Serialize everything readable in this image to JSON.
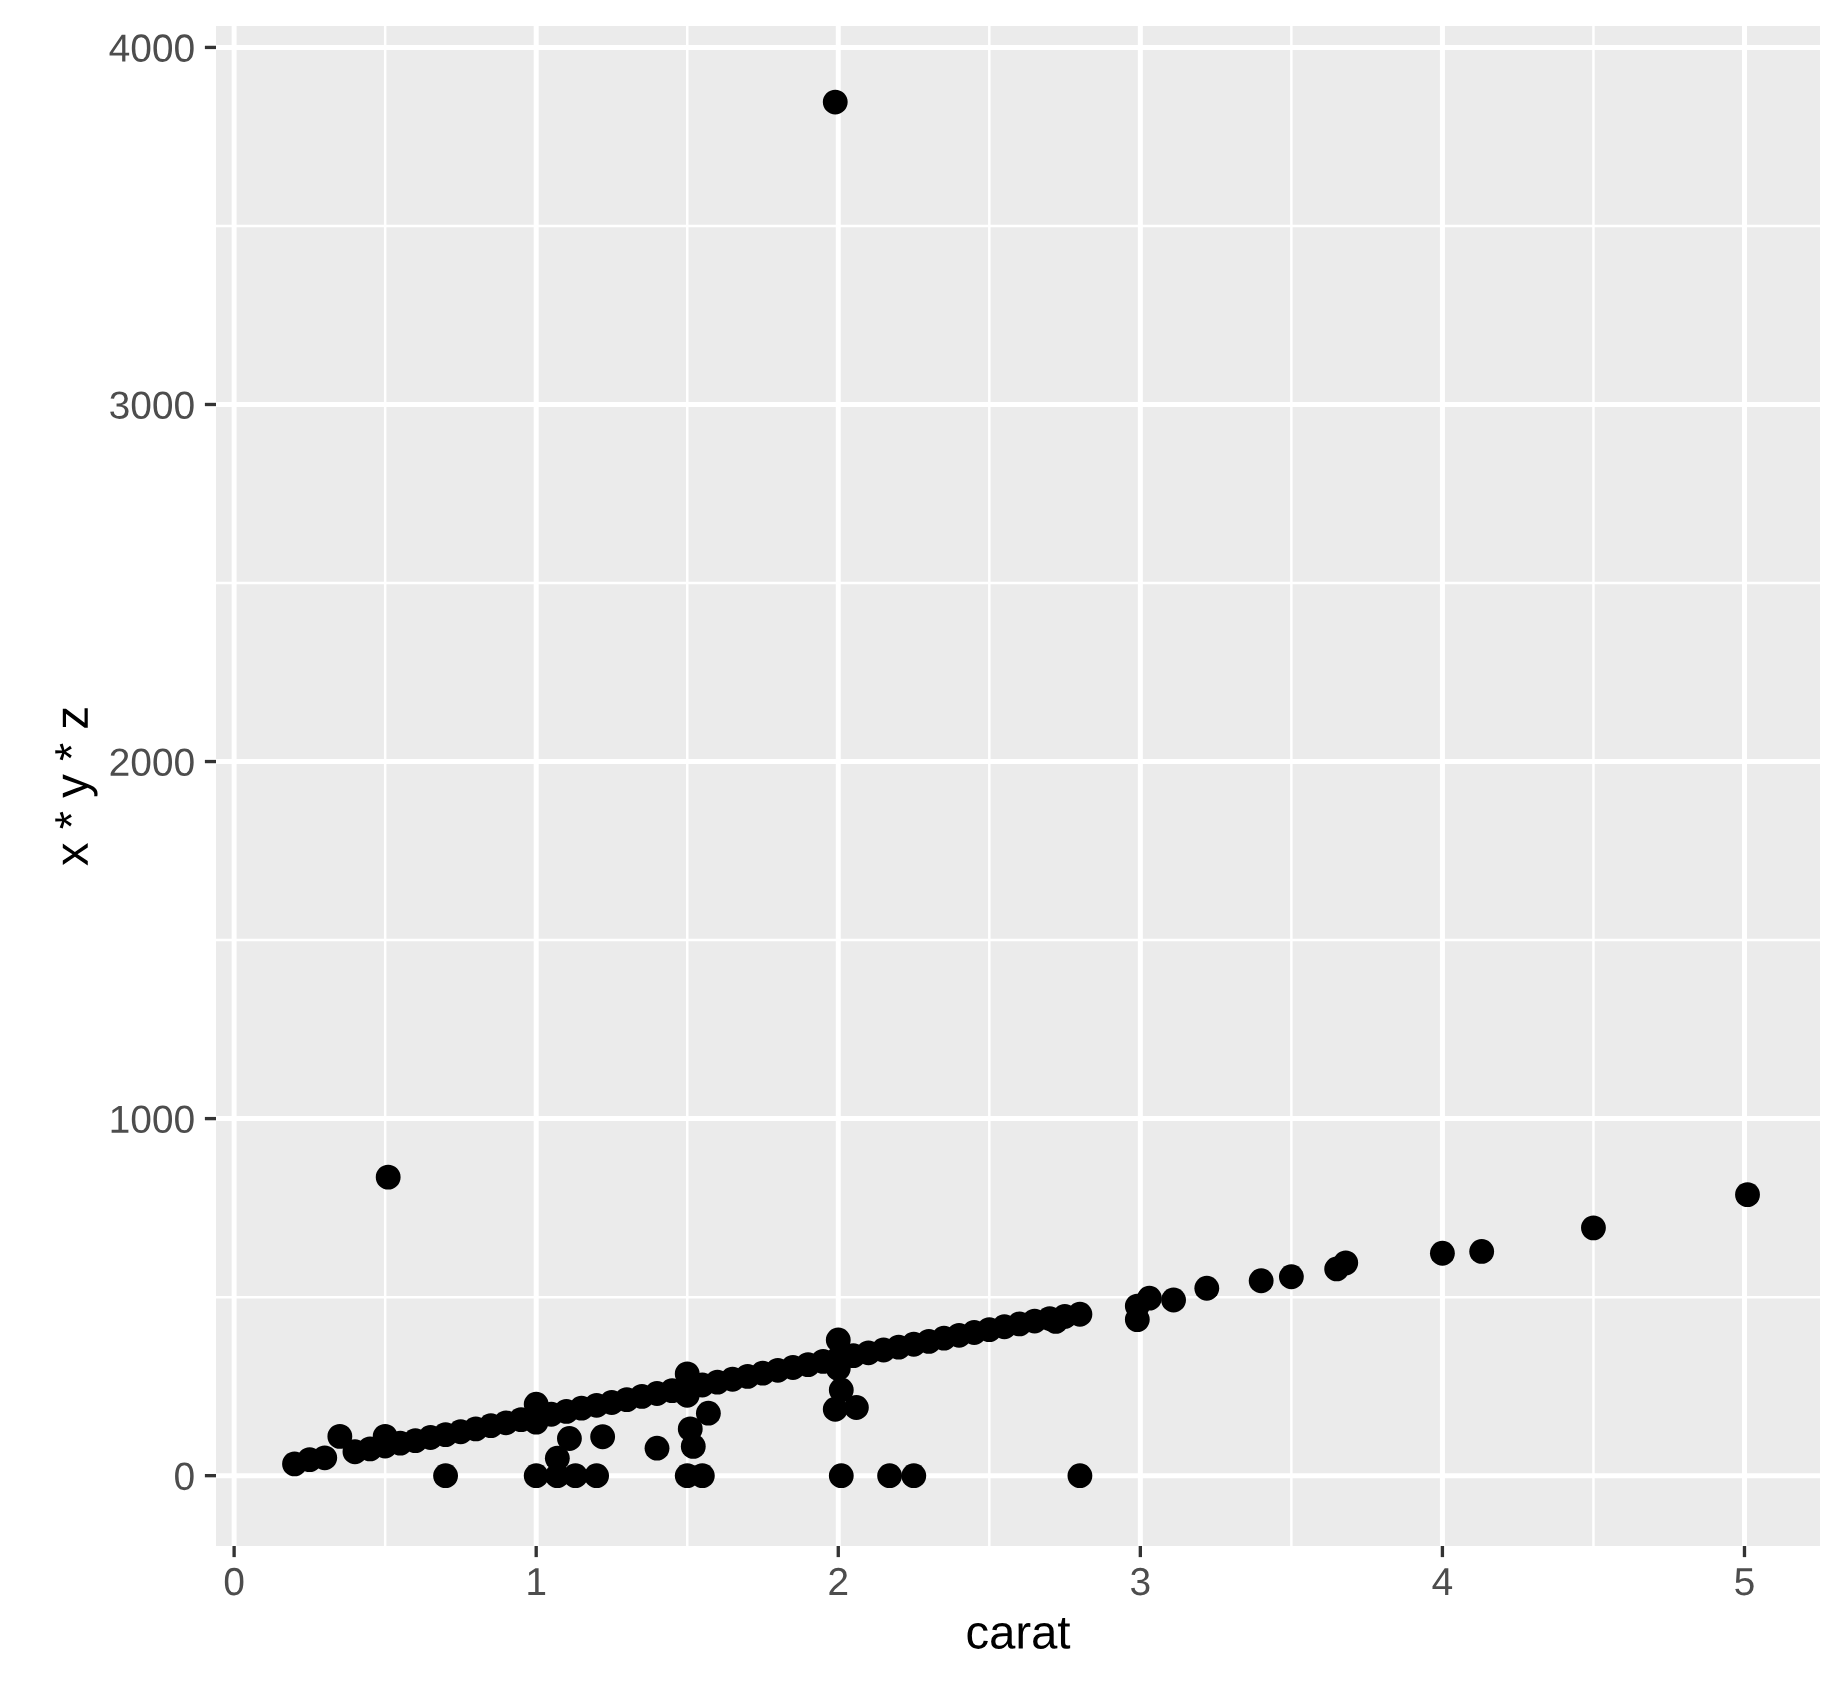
{
  "chart_data": {
    "type": "scatter",
    "xlabel": "carat",
    "ylabel": "x * y * z",
    "x": [
      0.2,
      0.25,
      0.3,
      0.35,
      0.4,
      0.5,
      0.5,
      0.6,
      0.7,
      0.8,
      0.9,
      1.0,
      1.0,
      1.1,
      1.2,
      1.3,
      1.4,
      1.5,
      1.5,
      1.6,
      1.7,
      1.8,
      1.9,
      2.0,
      2.0,
      2.0,
      2.1,
      2.2,
      2.3,
      2.4,
      2.5,
      2.6,
      2.7,
      2.8,
      0.51,
      1.99,
      0.7,
      1.0,
      1.07,
      1.13,
      1.2,
      1.5,
      1.55,
      2.01,
      2.17,
      2.25,
      2.8,
      1.07,
      1.11,
      1.22,
      1.4,
      1.51,
      1.52,
      1.57,
      1.99,
      2.06,
      2.01,
      2.72,
      2.99,
      2.99,
      3.03,
      3.11,
      3.22,
      3.4,
      3.5,
      3.65,
      3.68,
      4.0,
      4.13,
      4.5,
      5.01,
      0.45,
      0.55,
      0.65,
      0.75,
      0.85,
      0.95,
      1.05,
      1.15,
      1.25,
      1.35,
      1.45,
      1.55,
      1.65,
      1.75,
      1.85,
      1.95,
      2.05,
      2.15,
      2.25,
      2.35,
      2.45,
      2.55,
      2.65,
      2.75
    ],
    "values": [
      33,
      45,
      50,
      110,
      67,
      83,
      110,
      98,
      115,
      131,
      148,
      200,
      150,
      180,
      197,
      213,
      230,
      285,
      225,
      262,
      278,
      295,
      311,
      328,
      380,
      300,
      344,
      360,
      376,
      393,
      409,
      425,
      440,
      452,
      836,
      3847,
      0,
      0,
      0,
      0,
      0,
      0,
      0,
      0,
      0,
      0,
      0,
      49,
      104,
      109,
      77,
      131,
      82,
      175,
      186,
      191,
      240,
      432,
      475,
      437,
      497,
      492,
      525,
      546,
      557,
      579,
      596,
      623,
      628,
      694,
      787,
      75,
      91,
      107,
      123,
      140,
      157,
      172,
      189,
      205,
      222,
      238,
      254,
      270,
      287,
      303,
      320,
      336,
      352,
      368,
      385,
      401,
      417,
      433,
      446
    ],
    "color": "#000000",
    "marker": "circle",
    "xlim": [
      -0.06,
      5.25
    ],
    "ylim": [
      -197,
      4060
    ],
    "xticks": [
      0,
      1,
      2,
      3,
      4,
      5
    ],
    "yticks": [
      0,
      1000,
      2000,
      3000,
      4000
    ],
    "grid": true
  }
}
